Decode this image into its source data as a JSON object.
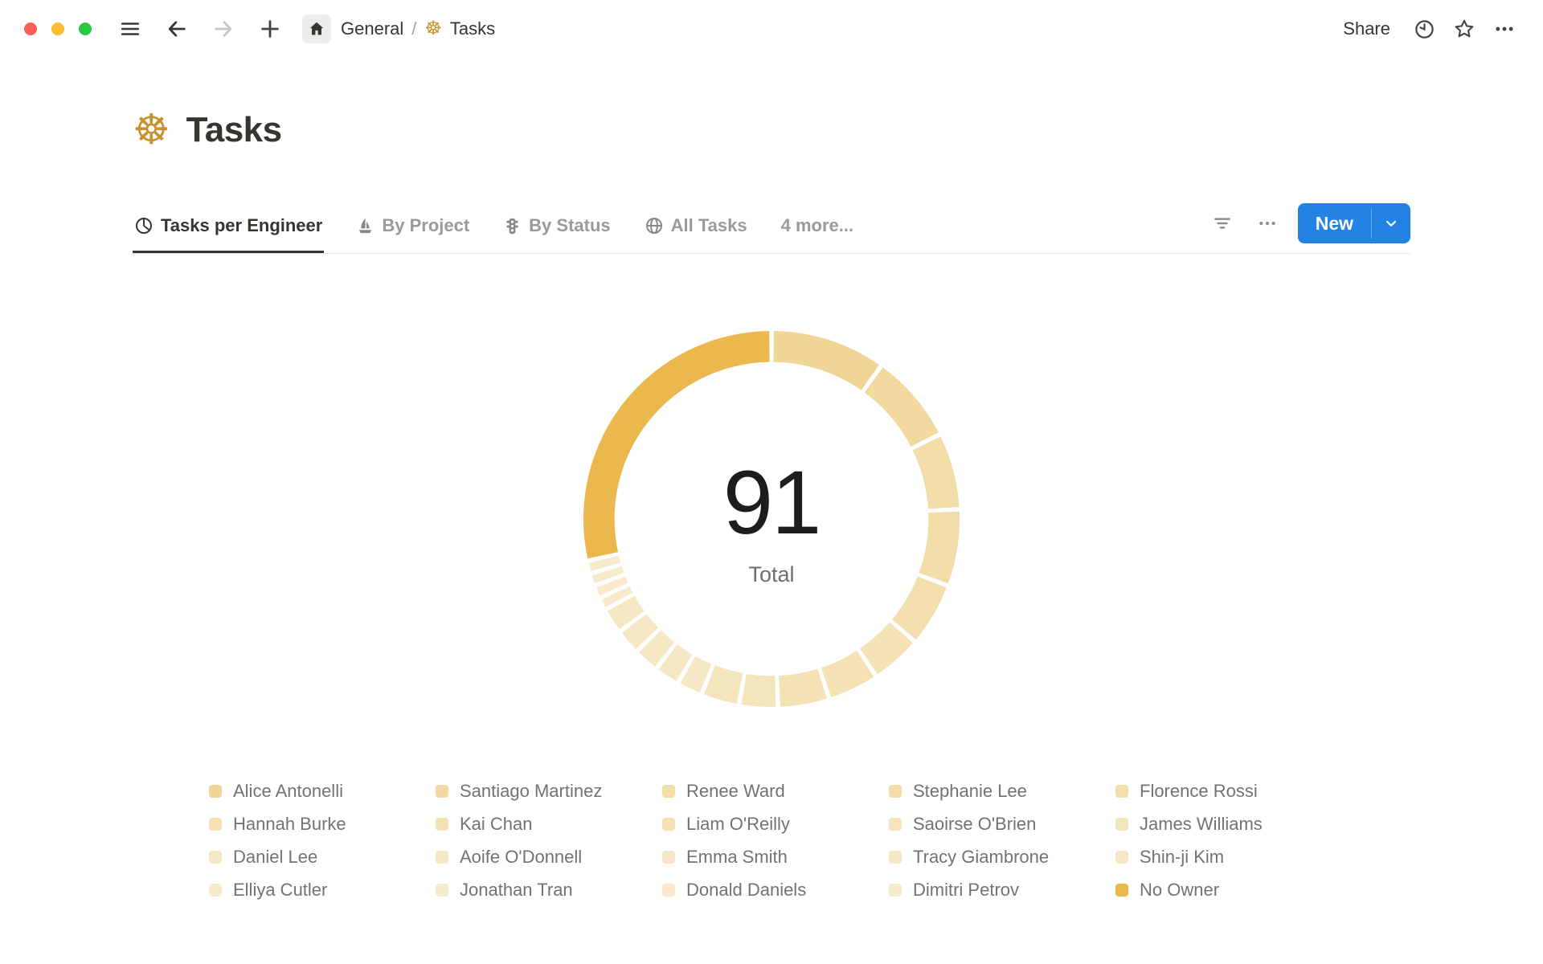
{
  "window": {
    "controls": [
      "close",
      "minimize",
      "zoom"
    ],
    "breadcrumb": {
      "workspace": "General",
      "separator": "/",
      "page": "Tasks",
      "page_icon": "ship-helm"
    },
    "share_label": "Share",
    "topbar_icons": [
      "menu",
      "back",
      "forward",
      "new-tab-plus",
      "home",
      "history-clock",
      "favorite-star",
      "more-ellipsis"
    ]
  },
  "page": {
    "title": "Tasks",
    "icon": "ship-helm",
    "icon_color": "#C6912F"
  },
  "tabs": {
    "items": [
      {
        "label": "Tasks per Engineer",
        "icon": "pie-chart-icon",
        "active": true
      },
      {
        "label": "By Project",
        "icon": "sailboat-icon",
        "active": false
      },
      {
        "label": "By Status",
        "icon": "traffic-light-icon",
        "active": false
      },
      {
        "label": "All Tasks",
        "icon": "globe-icon",
        "active": false
      },
      {
        "label": "4 more...",
        "icon": null,
        "active": false
      }
    ],
    "controls": {
      "filter": "filter-icon",
      "more": "ellipsis-icon",
      "new_label": "New",
      "new_color": "#2383E2"
    }
  },
  "chart_data": {
    "type": "pie",
    "subtype": "donut",
    "title": "Tasks per Engineer",
    "center_value": "91",
    "center_label": "Total",
    "total": 91,
    "legend_position": "bottom",
    "donut": {
      "start_angle": 0,
      "direction": "clockwise",
      "gap_degrees": 1.4,
      "outer_radius": 236,
      "inner_radius": 197
    },
    "series": [
      {
        "name": "Alice Antonelli",
        "value": 9,
        "color": "#F0D596"
      },
      {
        "name": "Santiago Martinez",
        "value": 7,
        "color": "#F1D9A0"
      },
      {
        "name": "Renee Ward",
        "value": 6,
        "color": "#F2DCA7"
      },
      {
        "name": "Stephanie Lee",
        "value": 6,
        "color": "#F2DCA7"
      },
      {
        "name": "Florence Rossi",
        "value": 5,
        "color": "#F3DFAE"
      },
      {
        "name": "Hannah Burke",
        "value": 4,
        "color": "#F4E2B5"
      },
      {
        "name": "Kai Chan",
        "value": 4,
        "color": "#F4E2B5"
      },
      {
        "name": "Liam O'Reilly",
        "value": 4,
        "color": "#F4E2B5"
      },
      {
        "name": "Saoirse O'Brien",
        "value": 3,
        "color": "#F5E5BD"
      },
      {
        "name": "James Williams",
        "value": 3,
        "color": "#F5E5BD"
      },
      {
        "name": "Daniel Lee",
        "value": 2,
        "color": "#F6E8C4"
      },
      {
        "name": "Aoife O'Donnell",
        "value": 2,
        "color": "#F6E8C4"
      },
      {
        "name": "Emma Smith",
        "value": 2,
        "color": "#F6E8C4"
      },
      {
        "name": "Tracy Giambrone",
        "value": 2,
        "color": "#F6E8C4"
      },
      {
        "name": "Shin-ji Kim",
        "value": 2,
        "color": "#F6E8C4"
      },
      {
        "name": "Elliya Cutler",
        "value": 1,
        "color": "#F7EBCC"
      },
      {
        "name": "Jonathan Tran",
        "value": 1,
        "color": "#F7EBCC"
      },
      {
        "name": "Donald Daniels",
        "value": 1,
        "color": "#F7EBCC"
      },
      {
        "name": "Dimitri Petrov",
        "value": 1,
        "color": "#F7EBCC"
      },
      {
        "name": "No Owner",
        "value": 26,
        "color": "#EBB84E"
      }
    ]
  },
  "colors": {
    "accent_blue": "#2383E2",
    "gold": "#C6912F",
    "traffic": [
      "#FE5F57",
      "#FEBC2E",
      "#28C840"
    ]
  }
}
